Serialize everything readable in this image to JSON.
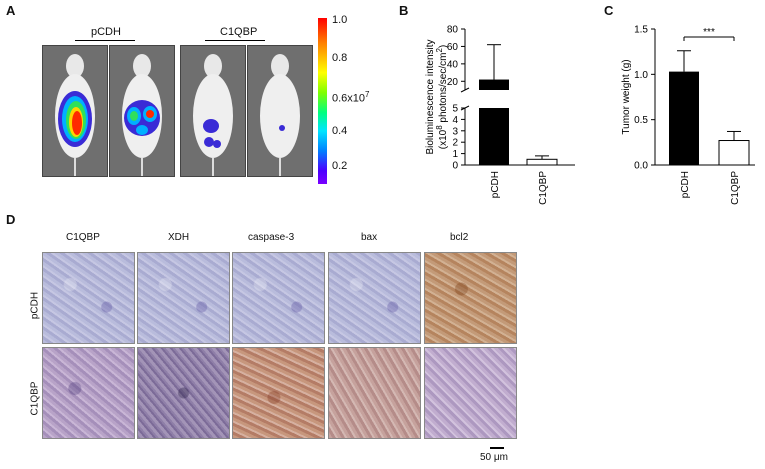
{
  "panel_labels": {
    "a": "A",
    "b": "B",
    "c": "C",
    "d": "D"
  },
  "panelA": {
    "group1_label": "pCDH",
    "group2_label": "C1QBP",
    "colorbar": {
      "ticks": [
        "1.0",
        "0.8",
        "0.6x10",
        "0.4",
        "0.2"
      ],
      "exponent": "7"
    }
  },
  "colors": {
    "black_bar": "#000000",
    "white_bar": "#ffffff"
  },
  "chart_data": [
    {
      "type": "bar",
      "id": "B",
      "categories": [
        "pCDH",
        "C1QBP"
      ],
      "values": [
        22,
        0.5
      ],
      "errors": [
        40,
        0.3
      ],
      "ylabel_line1": "Bioluminescence intensity",
      "ylabel_line2a": "(x10",
      "ylabel_line2_sup": "8",
      "ylabel_line2b": " photons/sec/cm",
      "ylabel_line2_sup2": "2",
      "ylabel_line2c": ")",
      "broken_axis": {
        "lower": [
          0,
          5
        ],
        "upper": [
          10,
          80
        ]
      },
      "yticks_lower": [
        "0",
        "1",
        "2",
        "3",
        "4",
        "5"
      ],
      "yticks_upper": [
        "20",
        "40",
        "60",
        "80"
      ]
    },
    {
      "type": "bar",
      "id": "C",
      "categories": [
        "pCDH",
        "C1QBP"
      ],
      "values": [
        1.03,
        0.27
      ],
      "errors": [
        0.23,
        0.1
      ],
      "ylabel": "Tumor weight (g)",
      "ylim": [
        0,
        1.5
      ],
      "yticks": [
        "0.0",
        "0.5",
        "1.0",
        "1.5"
      ],
      "significance": "***"
    }
  ],
  "panelD": {
    "columns": [
      "C1QBP",
      "XDH",
      "caspase-3",
      "bax",
      "bcl2"
    ],
    "rows": [
      "pCDH",
      "C1QBP"
    ],
    "scalebar": "50 μm"
  }
}
